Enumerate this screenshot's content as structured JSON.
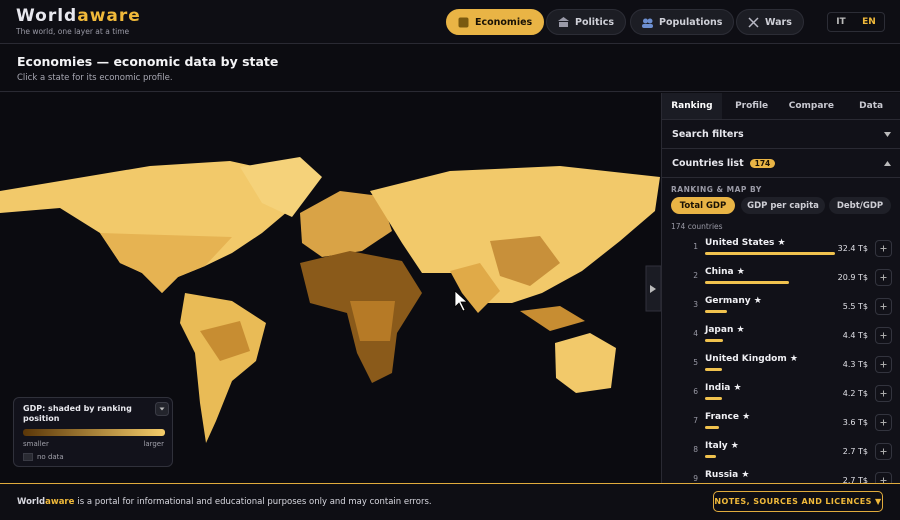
{
  "header": {
    "logo_first": "World",
    "logo_second": "aware",
    "tagline": "The world, one layer at a time",
    "nav": [
      "Economies",
      "Politics",
      "Populations",
      "Wars"
    ],
    "languages": [
      "IT",
      "EN"
    ]
  },
  "page_heading": {
    "title": "Economies — economic data by state",
    "subtitle": "Click a state for its economic profile."
  },
  "legend": {
    "title": "GDP: shaded by ranking position",
    "low": "smaller",
    "high": "larger",
    "no_data": "no data"
  },
  "sidebar": {
    "tabs": [
      "Ranking",
      "Profile",
      "Compare",
      "Data"
    ],
    "search_filters": "Search filters",
    "countries_list": "Countries list",
    "count_badge": 174,
    "ranking_by_label": "RANKING & MAP BY",
    "metrics": [
      "Total GDP",
      "GDP per capita",
      "Debt/GDP"
    ],
    "count_text": "174 countries",
    "rows": [
      {
        "rank": 1,
        "name": "United States ★",
        "value": 32.4,
        "value_label": "32.4 T$"
      },
      {
        "rank": 2,
        "name": "China ★",
        "value": 20.9,
        "value_label": "20.9 T$"
      },
      {
        "rank": 3,
        "name": "Germany ★",
        "value": 5.5,
        "value_label": "5.5 T$"
      },
      {
        "rank": 4,
        "name": "Japan ★",
        "value": 4.4,
        "value_label": "4.4 T$"
      },
      {
        "rank": 5,
        "name": "United Kingdom ★",
        "value": 4.3,
        "value_label": "4.3 T$"
      },
      {
        "rank": 6,
        "name": "India ★",
        "value": 4.2,
        "value_label": "4.2 T$"
      },
      {
        "rank": 7,
        "name": "France ★",
        "value": 3.6,
        "value_label": "3.6 T$"
      },
      {
        "rank": 8,
        "name": "Italy ★",
        "value": 2.7,
        "value_label": "2.7 T$"
      },
      {
        "rank": 9,
        "name": "Russia ★",
        "value": 2.7,
        "value_label": "2.7 T$"
      }
    ]
  },
  "footer": {
    "brand_first": "World",
    "brand_second": "aware",
    "text": "is a portal for informational and educational purposes only and may contain errors.",
    "button": "NOTES, SOURCES AND LICENCES ▼"
  }
}
